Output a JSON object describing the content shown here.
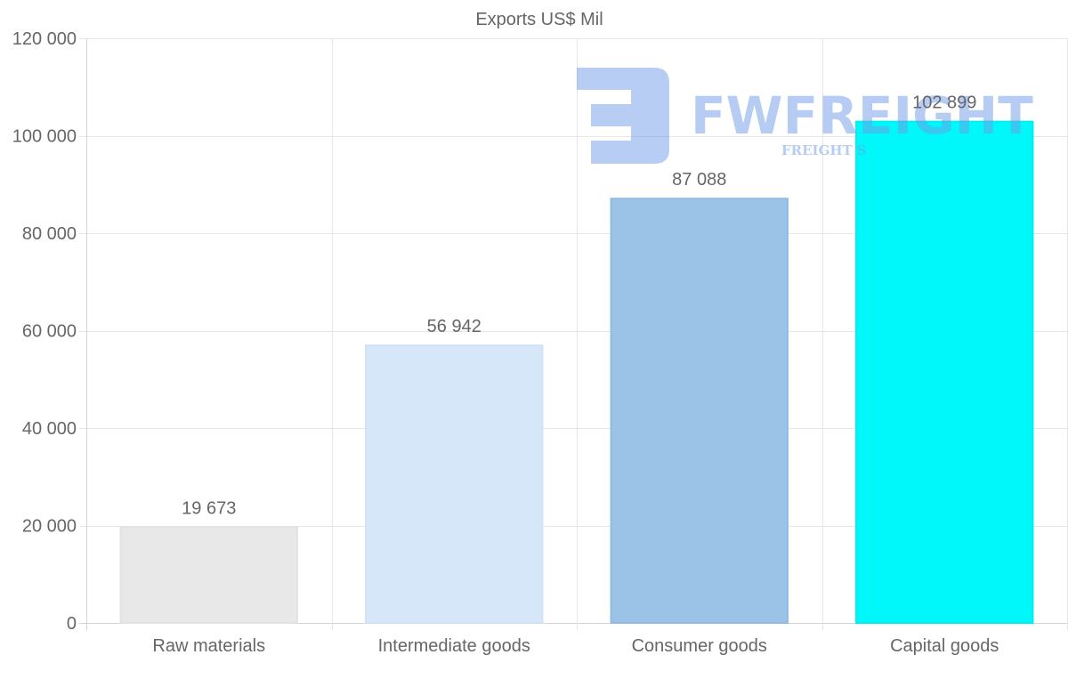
{
  "chart_data": {
    "type": "bar",
    "title": "Exports US$ Mil",
    "categories": [
      "Raw materials",
      "Intermediate goods",
      "Consumer goods",
      "Capital goods"
    ],
    "values": [
      19673,
      56942,
      87088,
      102899
    ],
    "value_labels": [
      "19 673",
      "56 942",
      "87 088",
      "102 899"
    ],
    "bar_colors": [
      "#e8e8e8",
      "#d6e7f9",
      "#9bc3e8",
      "#00f8fa"
    ],
    "bar_border_colors": [
      "#e2e2e2",
      "#cfe2f6",
      "#93bbe0",
      "#00eef0"
    ],
    "ylim": [
      0,
      120000
    ],
    "yticks": [
      0,
      20000,
      40000,
      60000,
      80000,
      100000,
      120000
    ],
    "ytick_labels": [
      "0",
      "20 000",
      "40 000",
      "60 000",
      "80 000",
      "100 000",
      "120 000"
    ],
    "xlabel": "",
    "ylabel": "",
    "grid": true,
    "legend": "none"
  },
  "watermark": {
    "brand": "FWFREIGHT",
    "tagline": "FREIGHT S",
    "color": "#6f9be8",
    "icon": "fwfreight-logo-icon"
  },
  "colors": {
    "grid": "#e6e6e6",
    "axis": "#d4d4d4",
    "text": "#666666"
  }
}
